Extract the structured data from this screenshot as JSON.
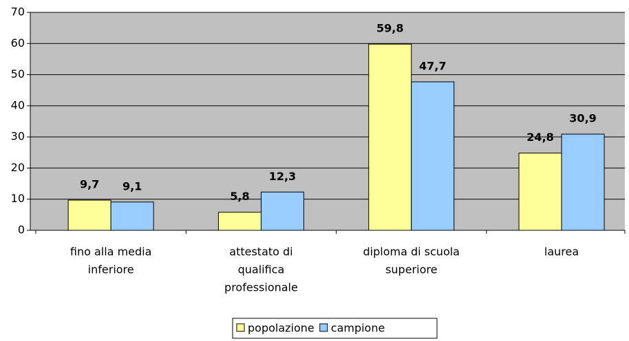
{
  "chart_data": {
    "type": "bar",
    "categories": [
      [
        "fino alla media",
        "inferiore"
      ],
      [
        "attestato di",
        "qualifica",
        "professionale"
      ],
      [
        "diploma di scuola",
        "superiore"
      ],
      [
        "laurea"
      ]
    ],
    "series": [
      {
        "name": "popolazione",
        "color": "#ffff99",
        "values": [
          9.7,
          5.8,
          59.8,
          24.8
        ],
        "value_labels": [
          "9,7",
          "5,8",
          "59,8",
          "24,8"
        ]
      },
      {
        "name": "campione",
        "color": "#99ccff",
        "values": [
          9.1,
          12.3,
          47.7,
          30.9
        ],
        "value_labels": [
          "9,1",
          "12,3",
          "47,7",
          "30,9"
        ]
      }
    ],
    "ylim": [
      0,
      70
    ],
    "yticks": [
      0,
      10,
      20,
      30,
      40,
      50,
      60,
      70
    ],
    "grid": true,
    "legend": "bottom"
  }
}
